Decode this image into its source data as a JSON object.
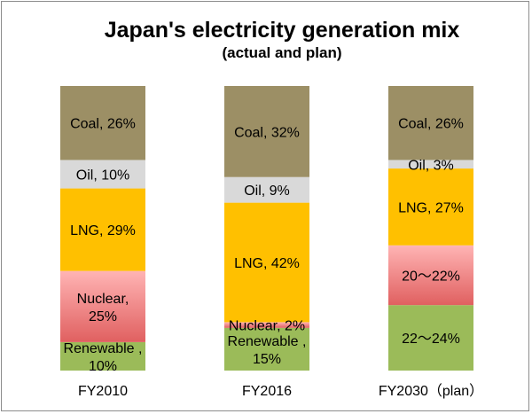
{
  "chart_data": {
    "type": "stacked-bar",
    "title": "Japan's electricity generation mix",
    "subtitle": "(actual and plan)",
    "categories": [
      "FY2010",
      "FY2016",
      "FY2030（plan）"
    ],
    "series": [
      {
        "name": "Renewable",
        "color": "#9bbb59",
        "values": [
          10,
          15,
          23
        ],
        "labels": [
          "Renewable ,\n10%",
          "Renewable ,\n15%",
          "22～24%"
        ]
      },
      {
        "name": "Nuclear",
        "color": "#e06060",
        "gradient_to": "#ffb4b4",
        "values": [
          25,
          2,
          21
        ],
        "labels": [
          "Nuclear,\n25%",
          "Nuclear, 2%",
          "20～22%"
        ]
      },
      {
        "name": "LNG",
        "color": "#ffc000",
        "values": [
          29,
          42,
          27
        ],
        "labels": [
          "LNG, 29%",
          "LNG, 42%",
          "LNG, 27%"
        ]
      },
      {
        "name": "Oil",
        "color": "#d9d9d9",
        "values": [
          10,
          9,
          3
        ],
        "labels": [
          "Oil, 10%",
          "Oil, 9%",
          "Oil, 3%"
        ]
      },
      {
        "name": "Coal",
        "color": "#9c8f65",
        "values": [
          26,
          32,
          26
        ],
        "labels": [
          "Coal, 26%",
          "Coal, 32%",
          "Coal, 26%"
        ]
      }
    ]
  }
}
